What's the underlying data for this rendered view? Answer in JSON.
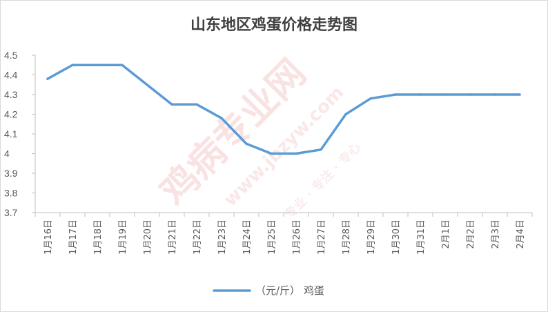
{
  "chart_data": {
    "type": "line",
    "title": "山东地区鸡蛋价格走势图",
    "categories": [
      "1月16日",
      "1月17日",
      "1月18日",
      "1月19日",
      "1月20日",
      "1月21日",
      "1月22日",
      "1月23日",
      "1月24日",
      "1月25日",
      "1月26日",
      "1月27日",
      "1月28日",
      "1月29日",
      "1月30日",
      "1月31日",
      "2月1日",
      "2月2日",
      "2月3日",
      "2月4日"
    ],
    "series": [
      {
        "name": "（元/斤） 鸡蛋",
        "values": [
          4.38,
          4.45,
          4.45,
          4.45,
          4.35,
          4.25,
          4.25,
          4.18,
          4.05,
          4.0,
          4.0,
          4.02,
          4.2,
          4.28,
          4.3,
          4.3,
          4.3,
          4.3,
          4.3,
          4.3
        ]
      }
    ],
    "y_ticks": [
      "3.7",
      "3.8",
      "3.9",
      "4",
      "4.1",
      "4.2",
      "4.3",
      "4.4",
      "4.5"
    ],
    "ylim": [
      3.7,
      4.5
    ],
    "grid": false,
    "legend_position": "bottom",
    "line_color": "#5b9bd5"
  },
  "watermark": {
    "main": "鸡病专业网",
    "url": "www.jbzyw.com",
    "slogan": "专业 · 专注 · 专心"
  }
}
